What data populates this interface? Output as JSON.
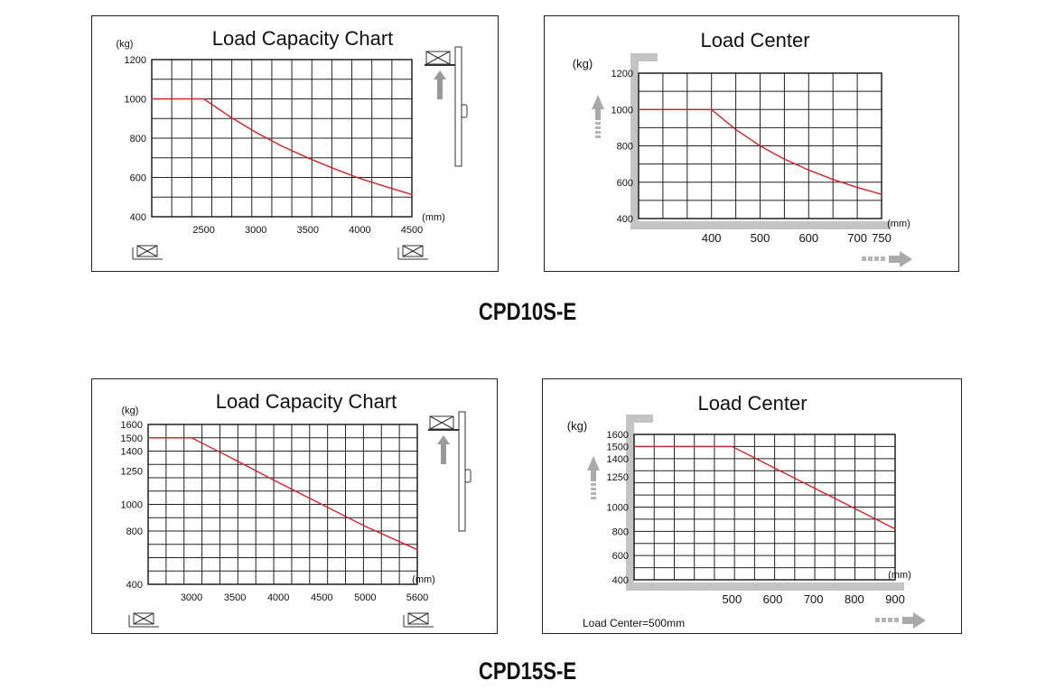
{
  "models": [
    "CPD10S-E",
    "CPD15S-E"
  ],
  "chart_data": [
    {
      "id": "c1",
      "type": "line",
      "title": "Load Capacity Chart",
      "ylabel": "(kg)",
      "xlabel": "(mm)",
      "yticks": [
        400,
        600,
        800,
        1000,
        1200
      ],
      "ylim": [
        400,
        1200
      ],
      "xticks": [
        2500,
        3000,
        3500,
        4000,
        4500
      ],
      "xlim": [
        2000,
        4500
      ],
      "series": [
        {
          "color": "#d2232a",
          "x": [
            2000,
            2500,
            2750,
            3000,
            3250,
            3500,
            3750,
            4000,
            4250,
            4500
          ],
          "y": [
            1000,
            1000,
            910,
            830,
            760,
            700,
            645,
            595,
            553,
            513
          ]
        }
      ],
      "grid": true,
      "icon": "mast-with-load-icon"
    },
    {
      "id": "c2",
      "type": "line",
      "title": "Load Center",
      "ylabel": "(kg)",
      "xlabel": "(mm)",
      "yticks": [
        400,
        600,
        800,
        1000,
        1200
      ],
      "ylim": [
        400,
        1200
      ],
      "xticks": [
        400,
        500,
        600,
        700,
        750
      ],
      "xlim": [
        250,
        750
      ],
      "series": [
        {
          "color": "#d2232a",
          "x": [
            250,
            400,
            450,
            500,
            550,
            600,
            650,
            700,
            750
          ],
          "y": [
            1000,
            1000,
            890,
            800,
            727,
            667,
            615,
            571,
            533
          ]
        }
      ],
      "grid": true
    },
    {
      "id": "c3",
      "type": "line",
      "title": "Load Capacity Chart",
      "ylabel": "(kg)",
      "xlabel": "(mm)",
      "yticks": [
        400,
        800,
        1000,
        1250,
        1400,
        1500,
        1600
      ],
      "ylim": [
        400,
        1600
      ],
      "xticks": [
        3000,
        3500,
        4000,
        4500,
        5000,
        5600
      ],
      "xlim": [
        2500,
        5600
      ],
      "series": [
        {
          "color": "#d2232a",
          "x": [
            2500,
            3000,
            3500,
            4000,
            4500,
            5000,
            5600
          ],
          "y": [
            1500,
            1500,
            1335,
            1165,
            1000,
            835,
            660
          ]
        }
      ],
      "grid": true,
      "icon": "mast-with-load-icon"
    },
    {
      "id": "c4",
      "type": "line",
      "title": "Load Center",
      "ylabel": "(kg)",
      "xlabel": "(mm)",
      "yticks": [
        400,
        600,
        800,
        1000,
        1250,
        1400,
        1500,
        1600
      ],
      "ylim": [
        400,
        1600
      ],
      "xticks": [
        500,
        600,
        700,
        800,
        900
      ],
      "xlim": [
        260,
        900
      ],
      "series": [
        {
          "color": "#d2232a",
          "x": [
            260,
            500,
            600,
            700,
            800,
            900
          ],
          "y": [
            1500,
            1500,
            1330,
            1160,
            990,
            820
          ]
        }
      ],
      "grid": true,
      "note": "Load Center=500mm"
    }
  ]
}
